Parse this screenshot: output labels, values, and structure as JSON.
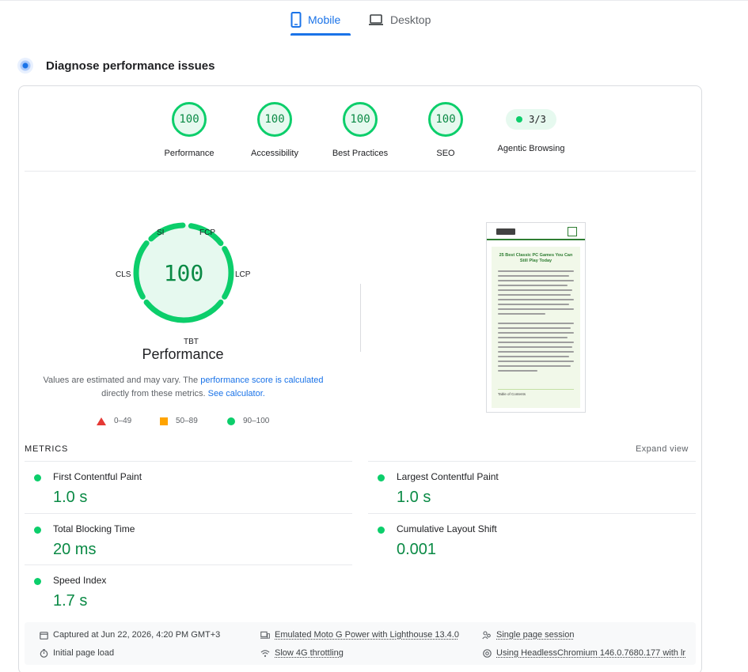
{
  "tabs": {
    "mobile_label": "Mobile",
    "desktop_label": "Desktop"
  },
  "section": {
    "title": "Diagnose performance issues"
  },
  "categories": [
    {
      "label": "Performance",
      "score": "100"
    },
    {
      "label": "Accessibility",
      "score": "100"
    },
    {
      "label": "Best Practices",
      "score": "100"
    },
    {
      "label": "SEO",
      "score": "100"
    },
    {
      "label": "Agentic Browsing",
      "score": "3/3"
    }
  ],
  "gauge": {
    "score": "100",
    "title": "Performance",
    "labels": {
      "si": "SI",
      "fcp": "FCP",
      "lcp": "LCP",
      "tbt": "TBT",
      "cls": "CLS"
    },
    "color": "#0cce6b"
  },
  "note": {
    "text1": "Values are estimated and may vary. The ",
    "link1": "performance score is calculated",
    "text2": "directly from these metrics. ",
    "link2": "See calculator."
  },
  "legend": {
    "fail": "0–49",
    "average": "50–89",
    "pass": "90–100"
  },
  "thumbnail": {
    "title": "25 Best Classic PC Games You Can Still Play Today",
    "toc": "Table of Contents"
  },
  "metrics": {
    "heading": "METRICS",
    "expand": "Expand view",
    "items": [
      {
        "name": "First Contentful Paint",
        "value": "1.0 s"
      },
      {
        "name": "Largest Contentful Paint",
        "value": "1.0 s"
      },
      {
        "name": "Total Blocking Time",
        "value": "20 ms"
      },
      {
        "name": "Cumulative Layout Shift",
        "value": "0.001"
      },
      {
        "name": "Speed Index",
        "value": "1.7 s"
      }
    ]
  },
  "footer": {
    "captured": "Captured at Jun 22, 2026, 4:20 PM GMT+3",
    "load": "Initial page load",
    "device": "Emulated Moto G Power with Lighthouse 13.4.0",
    "throttling": "Slow 4G throttling",
    "session": "Single page session",
    "browser": "Using HeadlessChromium 146.0.7680.177 with lr"
  }
}
